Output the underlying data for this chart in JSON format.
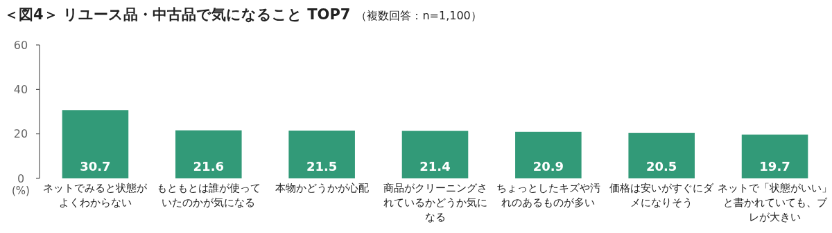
{
  "chart_data": {
    "type": "bar",
    "title": "＜図4＞ リユース品・中古品で気になること TOP7",
    "subtitle": "（複数回答：n=1,100）",
    "ylabel": "(%)",
    "categories": [
      "ネットでみると状態がよくわからない",
      "もともとは誰が使っていたのかが気になる",
      "本物かどうかが心配",
      "商品がクリーニングされているかどうか気になる",
      "ちょっとしたキズや汚れのあるものが多い",
      "価格は安いがすぐにダメになりそう",
      "ネットで「状態がいい」と書かれていても、ブレが大きい"
    ],
    "values": [
      30.7,
      21.6,
      21.5,
      21.4,
      20.9,
      20.5,
      19.7
    ],
    "color": "#329a78",
    "ylim": [
      0,
      60
    ],
    "yticks": [
      0,
      20,
      40,
      60
    ],
    "data_labels": true,
    "grid": false
  }
}
